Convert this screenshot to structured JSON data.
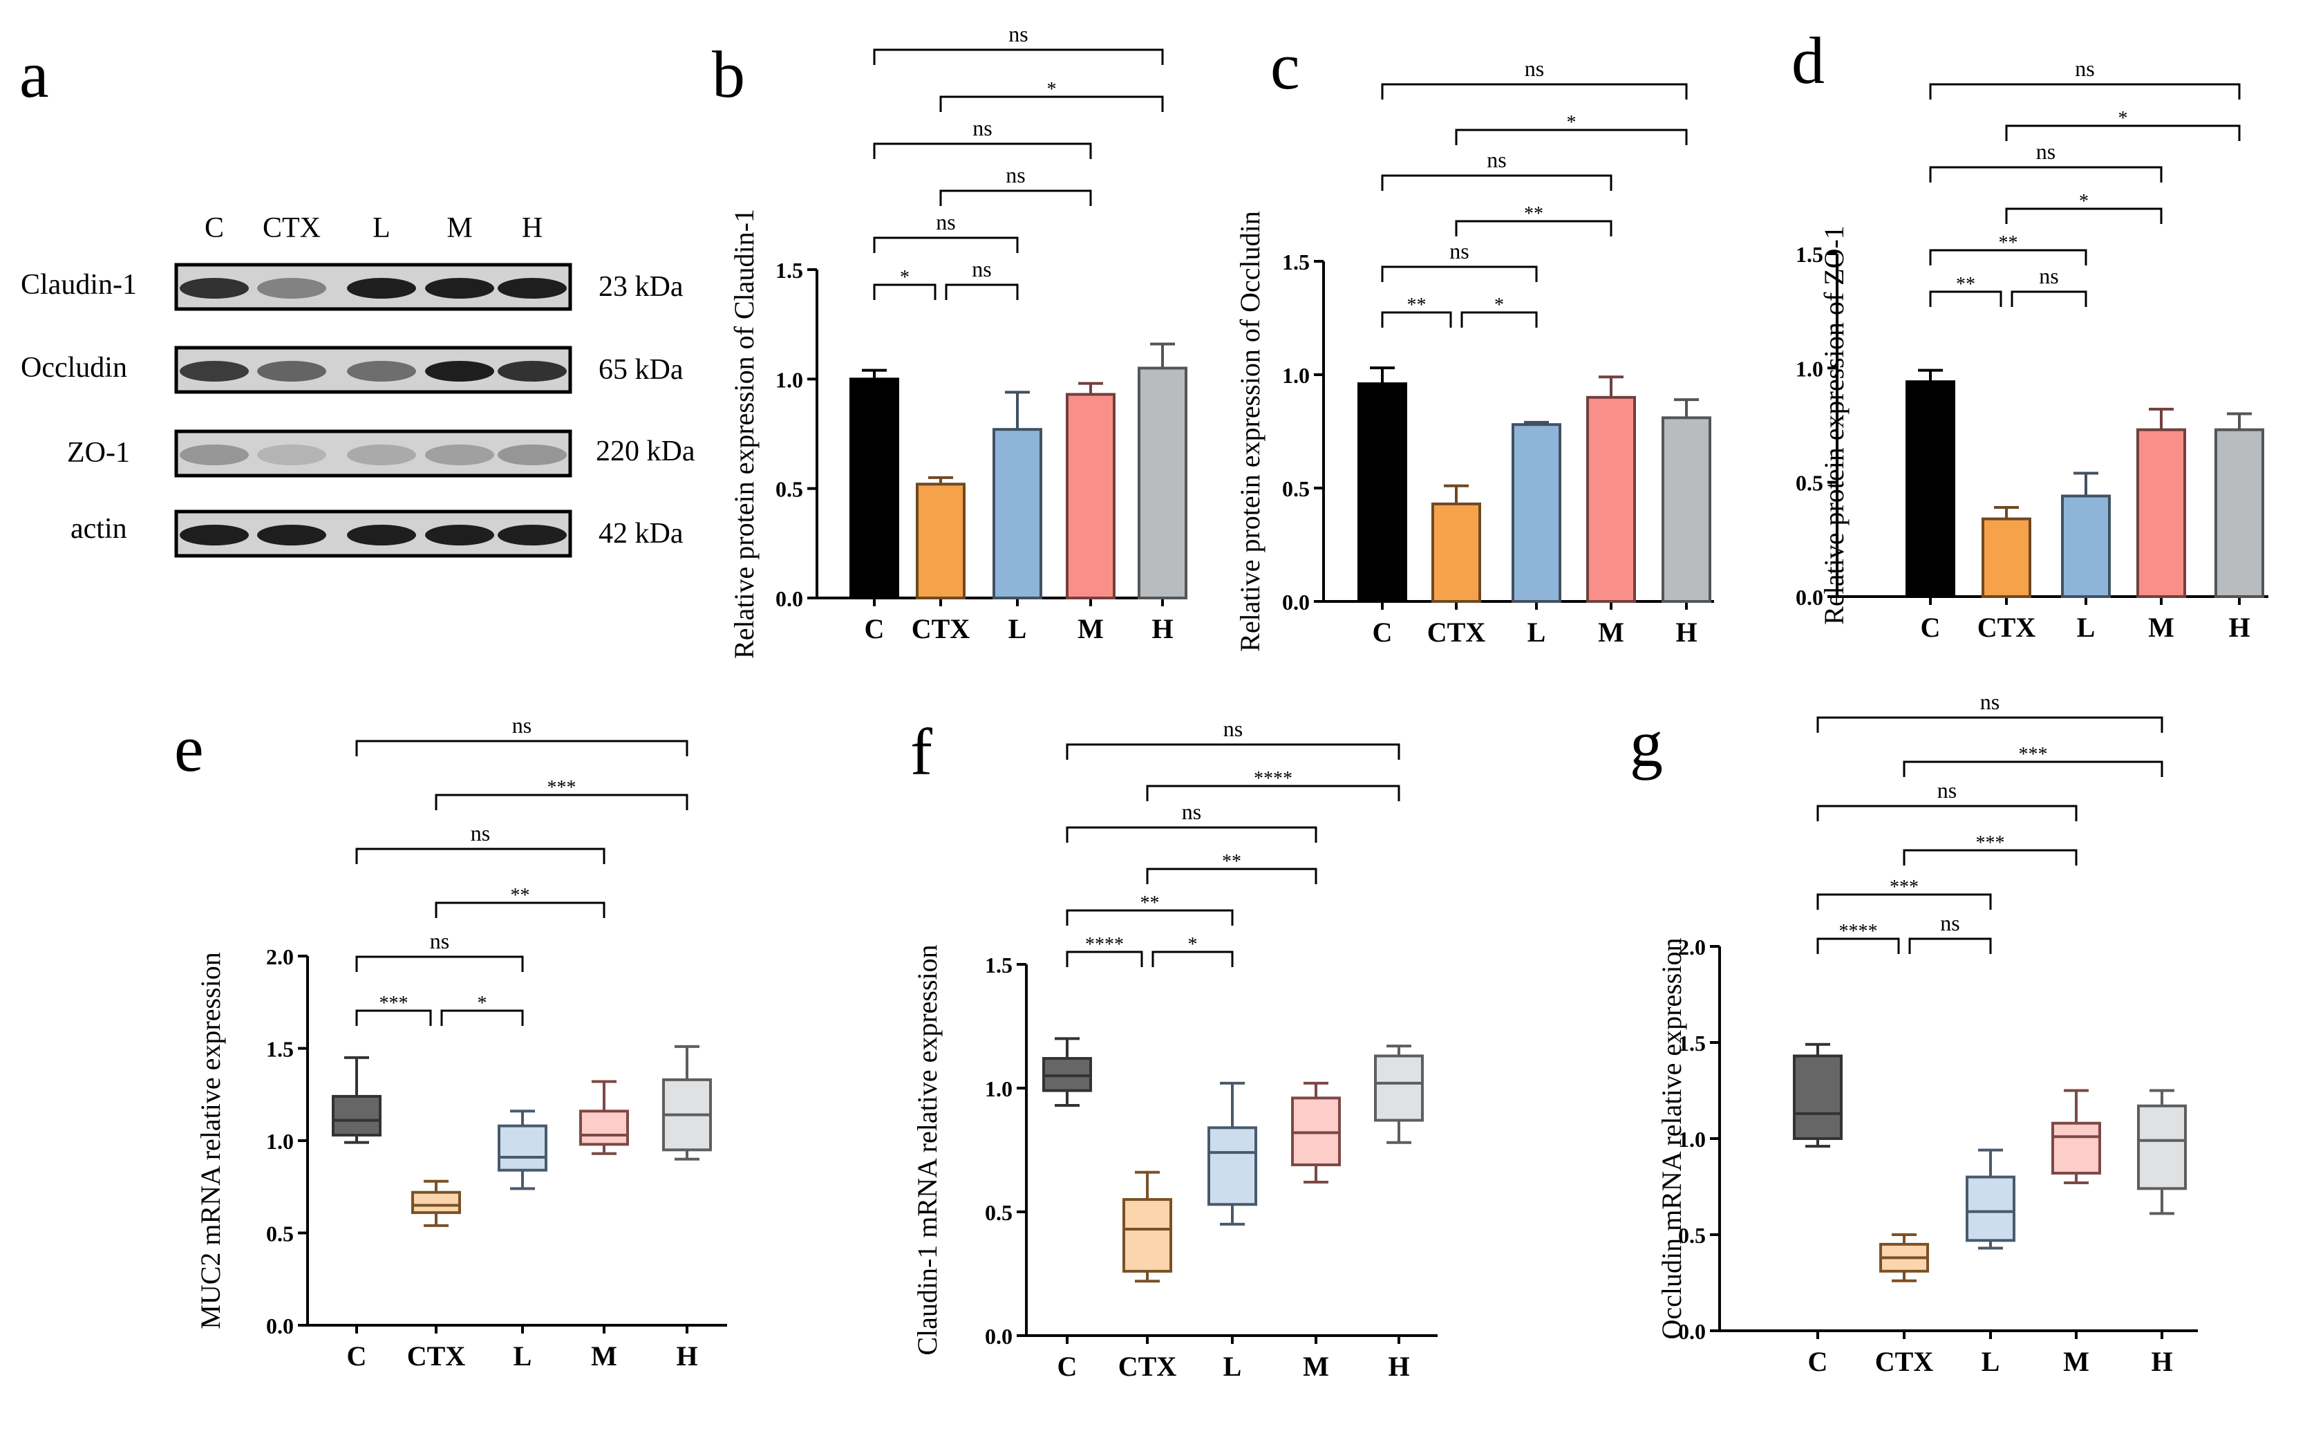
{
  "panel_labels": [
    "a",
    "b",
    "c",
    "d",
    "e",
    "f",
    "g"
  ],
  "western_blot": {
    "lanes": [
      "C",
      "CTX",
      "L",
      "M",
      "H"
    ],
    "proteins": [
      {
        "name": "Claudin-1",
        "size": "23 kDa",
        "intensity": [
          0.85,
          0.45,
          0.95,
          0.95,
          0.95
        ]
      },
      {
        "name": "Occludin",
        "size": "65 kDa",
        "intensity": [
          0.8,
          0.6,
          0.55,
          0.95,
          0.85
        ]
      },
      {
        "name": "ZO-1",
        "size": "220 kDa",
        "intensity": [
          0.35,
          0.2,
          0.25,
          0.3,
          0.35
        ]
      },
      {
        "name": "actin",
        "size": "42 kDa",
        "intensity": [
          0.95,
          0.95,
          0.95,
          0.95,
          0.95
        ]
      }
    ]
  },
  "colors": {
    "C": "#000000",
    "CTX": "#f5a24b",
    "L": "#8fb4d9",
    "M": "#fa8f8a",
    "H": "#b9bcbf"
  },
  "chart_data": [
    {
      "type": "bar",
      "panel": "b",
      "ylabel": "Relative protein expression of Claudin-1",
      "categories": [
        "C",
        "CTX",
        "L",
        "M",
        "H"
      ],
      "values": [
        1.0,
        0.52,
        0.77,
        0.93,
        1.05
      ],
      "errors": [
        0.04,
        0.03,
        0.17,
        0.05,
        0.11
      ],
      "ylim": [
        0,
        1.5
      ],
      "yticks": [
        "0.0",
        "0.5",
        "1.0",
        "1.5"
      ],
      "comparisons": [
        {
          "a": 0,
          "b": 4,
          "label": "ns"
        },
        {
          "a": 1,
          "b": 4,
          "label": "*"
        },
        {
          "a": 0,
          "b": 3,
          "label": "ns"
        },
        {
          "a": 1,
          "b": 3,
          "label": "ns"
        },
        {
          "a": 0,
          "b": 2,
          "label": "ns"
        },
        {
          "a": 0,
          "b": 1,
          "label": "*"
        },
        {
          "a": 1,
          "b": 2,
          "label": "ns"
        }
      ]
    },
    {
      "type": "bar",
      "panel": "c",
      "ylabel": "Relative protein expression of Occludin",
      "categories": [
        "C",
        "CTX",
        "L",
        "M",
        "H"
      ],
      "values": [
        0.96,
        0.43,
        0.78,
        0.9,
        0.81
      ],
      "errors": [
        0.07,
        0.08,
        0.01,
        0.09,
        0.08
      ],
      "ylim": [
        0,
        1.5
      ],
      "yticks": [
        "0.0",
        "0.5",
        "1.0",
        "1.5"
      ],
      "comparisons": [
        {
          "a": 0,
          "b": 4,
          "label": "ns"
        },
        {
          "a": 1,
          "b": 4,
          "label": "*"
        },
        {
          "a": 0,
          "b": 3,
          "label": "ns"
        },
        {
          "a": 1,
          "b": 3,
          "label": "**"
        },
        {
          "a": 0,
          "b": 2,
          "label": "ns"
        },
        {
          "a": 0,
          "b": 1,
          "label": "**"
        },
        {
          "a": 1,
          "b": 2,
          "label": "*"
        }
      ]
    },
    {
      "type": "bar",
      "panel": "d",
      "ylabel": "Relative protein expression of ZO-1",
      "categories": [
        "C",
        "CTX",
        "L",
        "M",
        "H"
      ],
      "values": [
        0.94,
        0.34,
        0.44,
        0.73,
        0.73
      ],
      "errors": [
        0.05,
        0.05,
        0.1,
        0.09,
        0.07
      ],
      "ylim": [
        0,
        1.5
      ],
      "yticks": [
        "0.0",
        "0.5",
        "1.0",
        "1.5"
      ],
      "comparisons": [
        {
          "a": 0,
          "b": 4,
          "label": "ns"
        },
        {
          "a": 1,
          "b": 4,
          "label": "*"
        },
        {
          "a": 0,
          "b": 3,
          "label": "ns"
        },
        {
          "a": 1,
          "b": 3,
          "label": "*"
        },
        {
          "a": 0,
          "b": 2,
          "label": "**"
        },
        {
          "a": 0,
          "b": 1,
          "label": "**"
        },
        {
          "a": 1,
          "b": 2,
          "label": "ns"
        }
      ]
    },
    {
      "type": "box",
      "panel": "e",
      "ylabel": "MUC2 mRNA relative expression",
      "categories": [
        "C",
        "CTX",
        "L",
        "M",
        "H"
      ],
      "boxes": [
        {
          "min": 0.99,
          "q1": 1.03,
          "median": 1.11,
          "q3": 1.24,
          "max": 1.45
        },
        {
          "min": 0.54,
          "q1": 0.61,
          "median": 0.65,
          "q3": 0.72,
          "max": 0.78
        },
        {
          "min": 0.74,
          "q1": 0.84,
          "median": 0.91,
          "q3": 1.08,
          "max": 1.16
        },
        {
          "min": 0.93,
          "q1": 0.98,
          "median": 1.03,
          "q3": 1.16,
          "max": 1.32
        },
        {
          "min": 0.9,
          "q1": 0.95,
          "median": 1.14,
          "q3": 1.33,
          "max": 1.51
        }
      ],
      "ylim": [
        0,
        2.0
      ],
      "yticks": [
        "0.0",
        "0.5",
        "1.0",
        "1.5",
        "2.0"
      ],
      "comparisons": [
        {
          "a": 0,
          "b": 4,
          "label": "ns"
        },
        {
          "a": 1,
          "b": 4,
          "label": "***"
        },
        {
          "a": 0,
          "b": 3,
          "label": "ns"
        },
        {
          "a": 1,
          "b": 3,
          "label": "**"
        },
        {
          "a": 0,
          "b": 2,
          "label": "ns"
        },
        {
          "a": 0,
          "b": 1,
          "label": "***"
        },
        {
          "a": 1,
          "b": 2,
          "label": "*"
        }
      ]
    },
    {
      "type": "box",
      "panel": "f",
      "ylabel": "Claudin-1 mRNA relative expression",
      "categories": [
        "C",
        "CTX",
        "L",
        "M",
        "H"
      ],
      "boxes": [
        {
          "min": 0.93,
          "q1": 0.99,
          "median": 1.05,
          "q3": 1.12,
          "max": 1.2
        },
        {
          "min": 0.22,
          "q1": 0.26,
          "median": 0.43,
          "q3": 0.55,
          "max": 0.66
        },
        {
          "min": 0.45,
          "q1": 0.53,
          "median": 0.74,
          "q3": 0.84,
          "max": 1.02
        },
        {
          "min": 0.62,
          "q1": 0.69,
          "median": 0.82,
          "q3": 0.96,
          "max": 1.02
        },
        {
          "min": 0.78,
          "q1": 0.87,
          "median": 1.02,
          "q3": 1.13,
          "max": 1.17
        }
      ],
      "ylim": [
        0,
        1.5
      ],
      "yticks": [
        "0.0",
        "0.5",
        "1.0",
        "1.5"
      ],
      "comparisons": [
        {
          "a": 0,
          "b": 4,
          "label": "ns"
        },
        {
          "a": 1,
          "b": 4,
          "label": "****"
        },
        {
          "a": 0,
          "b": 3,
          "label": "ns"
        },
        {
          "a": 1,
          "b": 3,
          "label": "**"
        },
        {
          "a": 0,
          "b": 2,
          "label": "**"
        },
        {
          "a": 0,
          "b": 1,
          "label": "****"
        },
        {
          "a": 1,
          "b": 2,
          "label": "*"
        }
      ]
    },
    {
      "type": "box",
      "panel": "g",
      "ylabel": "Occludin mRNA relative expression",
      "categories": [
        "C",
        "CTX",
        "L",
        "M",
        "H"
      ],
      "boxes": [
        {
          "min": 0.96,
          "q1": 1.0,
          "median": 1.13,
          "q3": 1.43,
          "max": 1.49
        },
        {
          "min": 0.26,
          "q1": 0.31,
          "median": 0.38,
          "q3": 0.45,
          "max": 0.5
        },
        {
          "min": 0.43,
          "q1": 0.47,
          "median": 0.62,
          "q3": 0.8,
          "max": 0.94
        },
        {
          "min": 0.77,
          "q1": 0.82,
          "median": 1.01,
          "q3": 1.08,
          "max": 1.25
        },
        {
          "min": 0.61,
          "q1": 0.74,
          "median": 0.99,
          "q3": 1.17,
          "max": 1.25
        }
      ],
      "ylim": [
        0,
        2.0
      ],
      "yticks": [
        "0.0",
        "0.5",
        "1.0",
        "1.5",
        "2.0"
      ],
      "comparisons": [
        {
          "a": 0,
          "b": 4,
          "label": "ns"
        },
        {
          "a": 1,
          "b": 4,
          "label": "***"
        },
        {
          "a": 0,
          "b": 3,
          "label": "ns"
        },
        {
          "a": 1,
          "b": 3,
          "label": "***"
        },
        {
          "a": 0,
          "b": 2,
          "label": "***"
        },
        {
          "a": 0,
          "b": 1,
          "label": "****"
        },
        {
          "a": 1,
          "b": 2,
          "label": "ns"
        }
      ]
    }
  ]
}
